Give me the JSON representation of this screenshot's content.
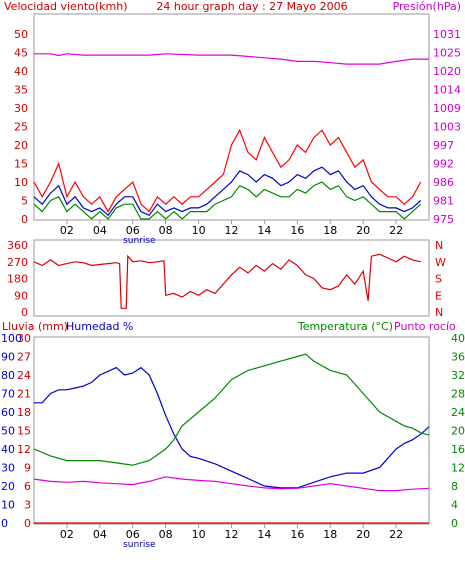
{
  "header": {
    "left": "Velocidad viento(kmh)",
    "center": "24 hour graph day : 27 Mayo 2006",
    "right": "Presión(hPa)"
  },
  "bottom_header": {
    "left": "Lluvia (mm)",
    "left2": "Humedad %",
    "right": "Temperatura (°C)",
    "right2": "Punto rocío"
  },
  "x_ticks": [
    "02",
    "04",
    "06",
    "08",
    "10",
    "12",
    "14",
    "16",
    "18",
    "20",
    "22"
  ],
  "sunrise_label": "sunrise",
  "colors": {
    "wind_axis": "#cc0000",
    "pressure_axis": "#cc00cc",
    "gust": "#ff0000",
    "average": "#0000cc",
    "calm": "#008800",
    "pressure": "#dd00dd",
    "direction": "#dd0000",
    "rain_axis": "#cc0000",
    "humidity": "#0000cc",
    "temperature": "#008800",
    "dewpoint": "#dd00dd",
    "rain": "#dd0000"
  },
  "chart_data": [
    {
      "type": "line",
      "name": "wind-pressure",
      "x_unit": "hour",
      "xlim": [
        0,
        24
      ],
      "wind_ylim": [
        0,
        50
      ],
      "wind_ticks": [
        "50",
        "45",
        "40",
        "35",
        "30",
        "25",
        "20",
        "15",
        "10",
        "5",
        "0"
      ],
      "pressure_ticks": [
        "1031",
        "1025",
        "1020",
        "1014",
        "1009",
        "1003",
        "997",
        "992",
        "986",
        "981",
        "975"
      ],
      "pressure_ylim": [
        975,
        1031
      ],
      "series": [
        {
          "key": "pressure",
          "x": [
            0,
            1,
            1.5,
            2,
            3,
            4,
            6,
            7,
            8,
            10,
            12,
            14,
            15,
            16,
            17,
            18,
            19,
            20,
            21,
            22,
            23,
            24
          ],
          "values": [
            1025,
            1025,
            1024.5,
            1025,
            1024.6,
            1024.6,
            1024.6,
            1024.6,
            1025,
            1024.6,
            1024.6,
            1023.8,
            1023.4,
            1022.7,
            1022.7,
            1022.3,
            1021.9,
            1021.9,
            1021.9,
            1022.7,
            1023.4,
            1023.4
          ]
        },
        {
          "key": "gust",
          "x": [
            0,
            0.5,
            1,
            1.5,
            2,
            2.5,
            3,
            3.5,
            4,
            4.5,
            5,
            5.5,
            6,
            6.5,
            7,
            7.5,
            8,
            8.5,
            9,
            9.5,
            10,
            10.5,
            11,
            11.5,
            12,
            12.5,
            13,
            13.5,
            14,
            14.5,
            15,
            15.5,
            16,
            16.5,
            17,
            17.5,
            18,
            18.5,
            19,
            19.5,
            20,
            20.5,
            21,
            21.5,
            22,
            22.5,
            23,
            23.5
          ],
          "values": [
            10,
            6,
            10,
            15,
            6,
            10,
            6,
            4,
            6,
            2,
            6,
            8,
            10,
            4,
            2,
            6,
            4,
            6,
            4,
            6,
            6,
            8,
            10,
            12,
            20,
            24,
            18,
            16,
            22,
            18,
            14,
            16,
            20,
            18,
            22,
            24,
            20,
            22,
            18,
            14,
            16,
            10,
            8,
            6,
            6,
            4,
            6,
            10
          ]
        },
        {
          "key": "average",
          "x": [
            0,
            0.5,
            1,
            1.5,
            2,
            2.5,
            3,
            3.5,
            4,
            4.5,
            5,
            5.5,
            6,
            6.5,
            7,
            7.5,
            8,
            8.5,
            9,
            9.5,
            10,
            10.5,
            11,
            11.5,
            12,
            12.5,
            13,
            13.5,
            14,
            14.5,
            15,
            15.5,
            16,
            16.5,
            17,
            17.5,
            18,
            18.5,
            19,
            19.5,
            20,
            20.5,
            21,
            21.5,
            22,
            22.5,
            23,
            23.5
          ],
          "values": [
            6,
            4,
            7,
            9,
            4,
            6,
            3,
            2,
            3,
            1,
            4,
            6,
            6,
            2,
            1,
            4,
            2,
            3,
            2,
            3,
            3,
            4,
            6,
            8,
            10,
            13,
            12,
            10,
            12,
            11,
            9,
            10,
            12,
            11,
            13,
            14,
            12,
            13,
            10,
            8,
            9,
            6,
            4,
            3,
            3,
            2,
            3,
            5
          ]
        },
        {
          "key": "calm",
          "x": [
            0,
            0.5,
            1,
            1.5,
            2,
            2.5,
            3,
            3.5,
            4,
            4.5,
            5,
            5.5,
            6,
            6.5,
            7,
            7.5,
            8,
            8.5,
            9,
            9.5,
            10,
            10.5,
            11,
            11.5,
            12,
            12.5,
            13,
            13.5,
            14,
            14.5,
            15,
            15.5,
            16,
            16.5,
            17,
            17.5,
            18,
            18.5,
            19,
            19.5,
            20,
            20.5,
            21,
            21.5,
            22,
            22.5,
            23,
            23.5
          ],
          "values": [
            4,
            2,
            5,
            6,
            2,
            4,
            2,
            0,
            2,
            0,
            3,
            4,
            4,
            0,
            0,
            2,
            0,
            2,
            0,
            2,
            2,
            2,
            4,
            5,
            6,
            9,
            8,
            6,
            8,
            7,
            6,
            6,
            8,
            7,
            9,
            10,
            8,
            9,
            6,
            5,
            6,
            4,
            2,
            2,
            2,
            0,
            2,
            4
          ]
        }
      ]
    },
    {
      "type": "line",
      "name": "wind-direction",
      "x_unit": "hour",
      "xlim": [
        0,
        24
      ],
      "ylim": [
        0,
        360
      ],
      "y_ticks": [
        "360",
        "270",
        "180",
        "90",
        "0"
      ],
      "compass_ticks": [
        "N",
        "W",
        "S",
        "E",
        "N"
      ],
      "series": [
        {
          "key": "direction",
          "x": [
            0,
            0.5,
            1,
            1.5,
            2,
            2.5,
            3,
            3.5,
            4,
            4.5,
            5,
            5.2,
            5.3,
            5.6,
            5.7,
            6,
            6.5,
            7,
            7.5,
            7.9,
            8.0,
            8.5,
            9,
            9.5,
            10,
            10.5,
            11,
            11.5,
            12,
            12.5,
            13,
            13.5,
            14,
            14.5,
            15,
            15.5,
            16,
            16.5,
            17,
            17.5,
            18,
            18.5,
            19,
            19.5,
            20,
            20.3,
            20.5,
            21,
            21.5,
            22,
            22.5,
            23,
            23.5
          ],
          "values": [
            270,
            250,
            280,
            250,
            260,
            270,
            265,
            250,
            255,
            260,
            265,
            260,
            20,
            20,
            300,
            270,
            275,
            265,
            270,
            275,
            90,
            100,
            80,
            110,
            90,
            120,
            100,
            150,
            200,
            240,
            210,
            250,
            220,
            260,
            230,
            280,
            250,
            200,
            180,
            130,
            120,
            140,
            200,
            150,
            220,
            60,
            300,
            310,
            290,
            270,
            300,
            280,
            270
          ]
        }
      ]
    },
    {
      "type": "line",
      "name": "rain-humidity-temperature",
      "x_unit": "hour",
      "xlim": [
        0,
        24
      ],
      "humidity_ylim": [
        0,
        100
      ],
      "humidity_ticks": [
        "100",
        "90",
        "80",
        "70",
        "60",
        "50",
        "40",
        "30",
        "20",
        "10",
        "0"
      ],
      "rain_ticks": [
        "30",
        "27",
        "24",
        "21",
        "18",
        "15",
        "12",
        "9",
        "6",
        "3",
        "0"
      ],
      "temperature_ylim": [
        0,
        40
      ],
      "temperature_ticks": [
        "40",
        "36",
        "32",
        "28",
        "24",
        "20",
        "16",
        "12",
        "8",
        "4",
        "0"
      ],
      "series": [
        {
          "key": "humidity",
          "x": [
            0,
            0.5,
            1,
            1.5,
            2,
            2.5,
            3,
            3.5,
            4,
            4.5,
            5,
            5.5,
            6,
            6.5,
            7,
            7.5,
            8,
            8.5,
            9,
            9.5,
            10,
            11,
            12,
            13,
            14,
            15,
            16,
            17,
            18,
            19,
            20,
            21,
            22,
            22.5,
            23,
            23.5,
            24
          ],
          "values": [
            65,
            65,
            70,
            72,
            72,
            73,
            74,
            76,
            80,
            82,
            84,
            80,
            81,
            84,
            80,
            70,
            58,
            48,
            40,
            36,
            35,
            32,
            28,
            24,
            20,
            19,
            19,
            22,
            25,
            27,
            27,
            30,
            40,
            43,
            45,
            48,
            52
          ]
        },
        {
          "key": "temperature",
          "x": [
            0,
            1,
            2,
            3,
            4,
            5,
            6,
            7,
            8,
            8.5,
            9,
            10,
            11,
            12,
            13,
            14,
            15,
            16,
            16.5,
            17,
            18,
            19,
            20,
            21,
            22,
            22.5,
            23,
            23.5,
            24
          ],
          "values": [
            16,
            14.5,
            13.5,
            13.5,
            13.5,
            13,
            12.5,
            13.5,
            16,
            18,
            21,
            24,
            27,
            31,
            33,
            34,
            35,
            36,
            36.5,
            35,
            33,
            32,
            28,
            24,
            22,
            21,
            20.5,
            19.5,
            19
          ]
        },
        {
          "key": "dewpoint",
          "x": [
            0,
            1,
            2,
            3,
            4,
            5,
            6,
            7,
            8,
            9,
            10,
            11,
            12,
            13,
            14,
            15,
            16,
            17,
            18,
            19,
            20,
            21,
            22,
            23,
            24
          ],
          "values": [
            9.5,
            9,
            8.8,
            9,
            8.7,
            8.5,
            8.3,
            9,
            10,
            9.5,
            9.2,
            9,
            8.5,
            8,
            7.6,
            7.4,
            7.5,
            8,
            8.5,
            8,
            7.5,
            7,
            7,
            7.3,
            7.5
          ]
        },
        {
          "key": "rain",
          "x": [
            0,
            24
          ],
          "values": [
            0,
            0
          ]
        }
      ]
    }
  ]
}
